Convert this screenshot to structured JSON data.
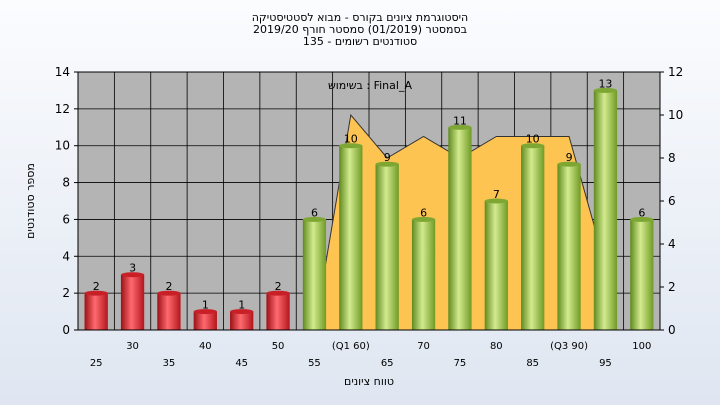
{
  "header": {
    "title": "היסטוגרמת ציונים בקורס - מבוא לסטטיסטיקה",
    "subtitle": "בסמסטר  (01/2019)  סמסטר חורף 2019/20",
    "registered": "סטודנטים רשומים - 135"
  },
  "chart_data": {
    "type": "bar",
    "annotation": "בשימוש : Final_A",
    "xlabel": "טווח ציונים",
    "ylabel": "מספר סטודנטים",
    "ylim": [
      0,
      14
    ],
    "y2lim": [
      0,
      12
    ],
    "y_ticks": [
      0,
      2,
      4,
      6,
      8,
      10,
      12,
      14
    ],
    "y2_ticks": [
      0,
      2,
      4,
      6,
      8,
      10,
      12
    ],
    "grid": true,
    "categories": [
      "25",
      "30",
      "35",
      "40",
      "45",
      "50",
      "55",
      "(Q1 60)",
      "65",
      "70",
      "75",
      "80",
      "85",
      "(Q3 90)",
      "95",
      "100"
    ],
    "values": [
      2,
      3,
      2,
      1,
      1,
      2,
      6,
      10,
      9,
      6,
      11,
      7,
      10,
      9,
      13,
      6
    ],
    "value_labels": [
      "2",
      "3",
      "2",
      "1",
      "1",
      "2",
      "6",
      "10",
      "9",
      "6",
      "11",
      "7",
      "10",
      "9",
      "13",
      "6"
    ],
    "bar_colors": [
      "red",
      "red",
      "red",
      "red",
      "red",
      "red",
      "green",
      "green",
      "green",
      "green",
      "green",
      "green",
      "green",
      "green",
      "green",
      "green"
    ],
    "colors": {
      "red": "#e8343c",
      "green": "#8fbf3e",
      "area": "#fec452",
      "plot_bg": "#b4b4b4"
    },
    "area_series": {
      "x_categories": [
        "55",
        "(Q1 60)",
        "65",
        "70",
        "75",
        "80",
        "85",
        "(Q3 90)",
        "95"
      ],
      "values": [
        0,
        10,
        8,
        9,
        8,
        9,
        9,
        9,
        3
      ]
    }
  }
}
